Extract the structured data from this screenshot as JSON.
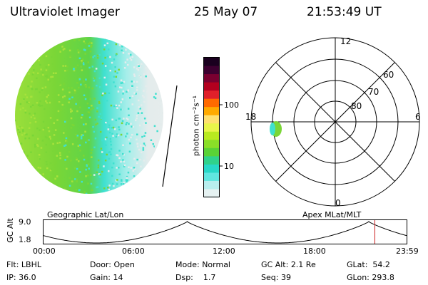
{
  "header": {
    "instrument": "Ultraviolet Imager",
    "date": "25 May 07",
    "time": "21:53:49 UT"
  },
  "colorbar": {
    "units_label": "photon cm⁻²s⁻¹",
    "ticks": [
      "100",
      "10"
    ],
    "colors_top_to_bottom": [
      "#1a001f",
      "#3d0030",
      "#7a0030",
      "#b3001f",
      "#e0202a",
      "#ff6a00",
      "#ffaa00",
      "#ffe070",
      "#e9f54a",
      "#b9ea20",
      "#8ade28",
      "#5ad236",
      "#30d28c",
      "#28d8c8",
      "#60e6e0",
      "#b8eeee",
      "#e6f2f2"
    ]
  },
  "polar": {
    "mlt_labels": {
      "top": "12",
      "left": "18",
      "right": "6",
      "bottom": "0"
    },
    "lat_labels": [
      "60",
      "70",
      "80"
    ]
  },
  "strip": {
    "left_title": "Geographic Lat/Lon",
    "right_title": "Apex MLat/MLT",
    "y_axis_label": "GC Alt",
    "y_ticks": [
      "9.0",
      "1.8"
    ],
    "x_ticks": [
      "00:00",
      "06:00",
      "12:00",
      "18:00",
      "23:59"
    ],
    "current_time_marker_hours": 21.9
  },
  "footer": {
    "row1": [
      {
        "key": "Flt:",
        "value": "LBHL"
      },
      {
        "key": "Door:",
        "value": "Open"
      },
      {
        "key": "Mode:",
        "value": "Normal"
      },
      {
        "key": "GC Alt:",
        "value": "2.1 Re"
      },
      {
        "key": "GLat:",
        "value": "54.2"
      }
    ],
    "row2": [
      {
        "key": "IP:",
        "value": "36.0"
      },
      {
        "key": "Gain:",
        "value": "14"
      },
      {
        "key": "Dsp:",
        "value": "1.7"
      },
      {
        "key": "Seq:",
        "value": "39"
      },
      {
        "key": "GLon:",
        "value": "293.8"
      }
    ]
  },
  "colors": {
    "green": "#7ad637",
    "green2": "#a6e23c",
    "cyan": "#3fe0cf",
    "pale": "#e4ecec",
    "marker": "#cc2222"
  }
}
